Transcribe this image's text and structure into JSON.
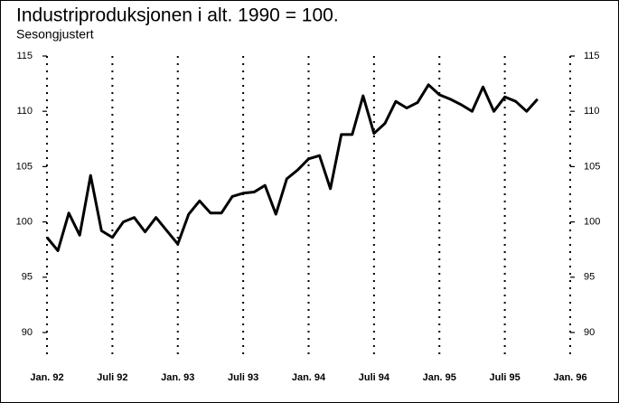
{
  "chart_data": {
    "type": "line",
    "title": "Industriproduksjonen i alt. 1990 = 100.",
    "subtitle": "Sesongjustert",
    "x": [
      "1992-01",
      "1992-02",
      "1992-03",
      "1992-04",
      "1992-05",
      "1992-06",
      "1992-07",
      "1992-08",
      "1992-09",
      "1992-10",
      "1992-11",
      "1992-12",
      "1993-01",
      "1993-02",
      "1993-03",
      "1993-04",
      "1993-05",
      "1993-06",
      "1993-07",
      "1993-08",
      "1993-09",
      "1993-10",
      "1993-11",
      "1993-12",
      "1994-01",
      "1994-02",
      "1994-03",
      "1994-04",
      "1994-05",
      "1994-06",
      "1994-07",
      "1994-08",
      "1994-09",
      "1994-10",
      "1994-11",
      "1994-12",
      "1995-01",
      "1995-02",
      "1995-03",
      "1995-04",
      "1995-05",
      "1995-06",
      "1995-07",
      "1995-08",
      "1995-09",
      "1995-10"
    ],
    "series": [
      {
        "color": "#000000",
        "values": [
          98.6,
          97.4,
          100.8,
          98.8,
          104.2,
          99.2,
          98.6,
          100.0,
          100.4,
          99.1,
          100.4,
          99.2,
          98.0,
          100.7,
          101.9,
          100.8,
          100.8,
          102.3,
          102.6,
          102.7,
          103.3,
          100.7,
          103.9,
          104.7,
          105.7,
          106.0,
          103.0,
          107.9,
          107.9,
          111.4,
          108.0,
          108.9,
          110.9,
          110.3,
          110.8,
          112.4,
          111.5,
          111.1,
          110.6,
          110.0,
          112.2,
          110.0,
          111.3,
          110.9,
          110.0,
          111.1
        ]
      }
    ],
    "xlim": [
      "1992-01",
      "1996-01"
    ],
    "xticks": [
      {
        "value": "1992-01",
        "label": "Jan. 92"
      },
      {
        "value": "1992-07",
        "label": "Juli 92"
      },
      {
        "value": "1993-01",
        "label": "Jan. 93"
      },
      {
        "value": "1993-07",
        "label": "Juli 93"
      },
      {
        "value": "1994-01",
        "label": "Jan. 94"
      },
      {
        "value": "1994-07",
        "label": "Juli 94"
      },
      {
        "value": "1995-01",
        "label": "Jan. 95"
      },
      {
        "value": "1995-07",
        "label": "Juli 95"
      },
      {
        "value": "1996-01",
        "label": "Jan. 96"
      }
    ],
    "ylim": [
      90,
      115
    ],
    "yticks": [
      90,
      95,
      100,
      105,
      110,
      115
    ],
    "grid": true
  }
}
